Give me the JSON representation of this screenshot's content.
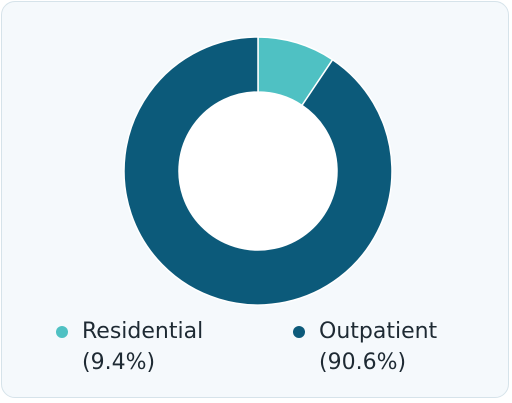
{
  "chart_data": {
    "type": "donut",
    "slices": [
      {
        "name": "Residential",
        "percent_label": "(9.4%)",
        "value": 9.4,
        "color": "#4fc1c3"
      },
      {
        "name": "Outpatient",
        "percent_label": "(90.6%)",
        "value": 90.6,
        "color": "#0c5a7a"
      }
    ],
    "legend_position": "bottom"
  },
  "colors": {
    "card_background": "#f5f9fc",
    "card_border": "#d6e3ea",
    "text": "#1e2a33"
  }
}
